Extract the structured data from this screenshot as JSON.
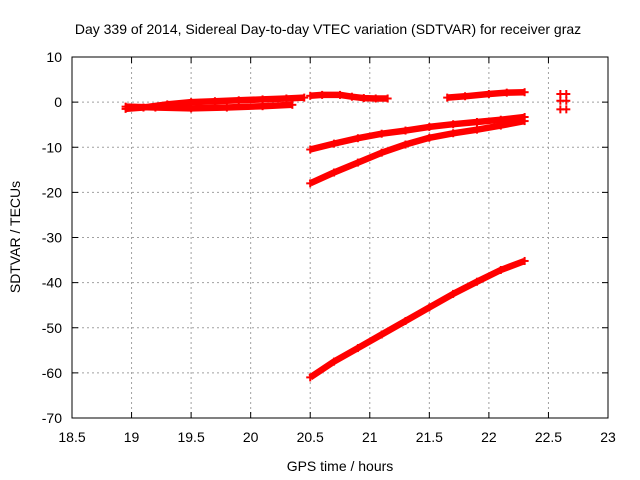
{
  "chart_data": {
    "type": "scatter",
    "title": "Day 339 of 2014, Sidereal Day-to-day VTEC variation (SDTVAR) for receiver graz",
    "xlabel": "GPS time / hours",
    "ylabel": "SDTVAR / TECUs",
    "xlim": [
      18.5,
      23
    ],
    "ylim": [
      -70,
      10
    ],
    "x_ticks": [
      18.5,
      19,
      19.5,
      20,
      20.5,
      21,
      21.5,
      22,
      22.5,
      23
    ],
    "y_ticks": [
      -70,
      -60,
      -50,
      -40,
      -30,
      -20,
      -10,
      0,
      10
    ],
    "x_tick_labels": [
      "18.5",
      "19",
      "19.5",
      "20",
      "20.5",
      "21",
      "21.5",
      "22",
      "22.5",
      "23"
    ],
    "y_tick_labels": [
      "-70",
      "-60",
      "-50",
      "-40",
      "-30",
      "-20",
      "-10",
      "0",
      "10"
    ],
    "grid": true,
    "marker": "plus",
    "color": "#ff0000",
    "series": [
      {
        "x": [
          18.95,
          19.1,
          19.3,
          19.5,
          19.7,
          19.9,
          20.1,
          20.3,
          20.45
        ],
        "y": [
          -1.5,
          -1.2,
          -0.5,
          0.0,
          0.2,
          0.4,
          0.6,
          0.8,
          1.0
        ]
      },
      {
        "x": [
          18.95,
          19.2,
          19.5,
          19.8,
          20.1,
          20.35
        ],
        "y": [
          -1.0,
          -1.2,
          -1.4,
          -1.2,
          -0.9,
          -0.6
        ]
      },
      {
        "x": [
          20.5,
          20.6,
          20.75,
          20.85,
          20.95,
          21.05,
          21.15
        ],
        "y": [
          1.4,
          1.6,
          1.6,
          1.2,
          0.9,
          0.8,
          0.8
        ]
      },
      {
        "x": [
          21.65,
          21.8,
          22.0,
          22.15,
          22.3
        ],
        "y": [
          1.0,
          1.3,
          1.8,
          2.1,
          2.2
        ]
      },
      {
        "x": [
          22.6,
          22.6,
          22.6,
          22.65,
          22.65,
          22.65
        ],
        "y": [
          1.8,
          0.3,
          -1.6,
          1.8,
          0.3,
          -1.6
        ]
      },
      {
        "x": [
          20.5,
          20.7,
          20.9,
          21.1,
          21.3,
          21.5,
          21.7,
          21.9,
          22.1,
          22.3
        ],
        "y": [
          -10.5,
          -9.2,
          -8.0,
          -7.0,
          -6.3,
          -5.5,
          -4.9,
          -4.4,
          -3.9,
          -3.3
        ]
      },
      {
        "x": [
          20.5,
          20.7,
          20.9,
          21.1,
          21.3,
          21.5,
          21.7,
          21.9,
          22.1,
          22.3
        ],
        "y": [
          -18.0,
          -15.6,
          -13.4,
          -11.2,
          -9.4,
          -7.9,
          -6.9,
          -6.1,
          -5.2,
          -4.2
        ]
      },
      {
        "x": [
          20.5,
          20.7,
          20.9,
          21.1,
          21.3,
          21.5,
          21.7,
          21.9,
          22.1,
          22.3
        ],
        "y": [
          -61.0,
          -57.5,
          -54.5,
          -51.5,
          -48.5,
          -45.5,
          -42.5,
          -39.8,
          -37.2,
          -35.2
        ]
      }
    ]
  }
}
